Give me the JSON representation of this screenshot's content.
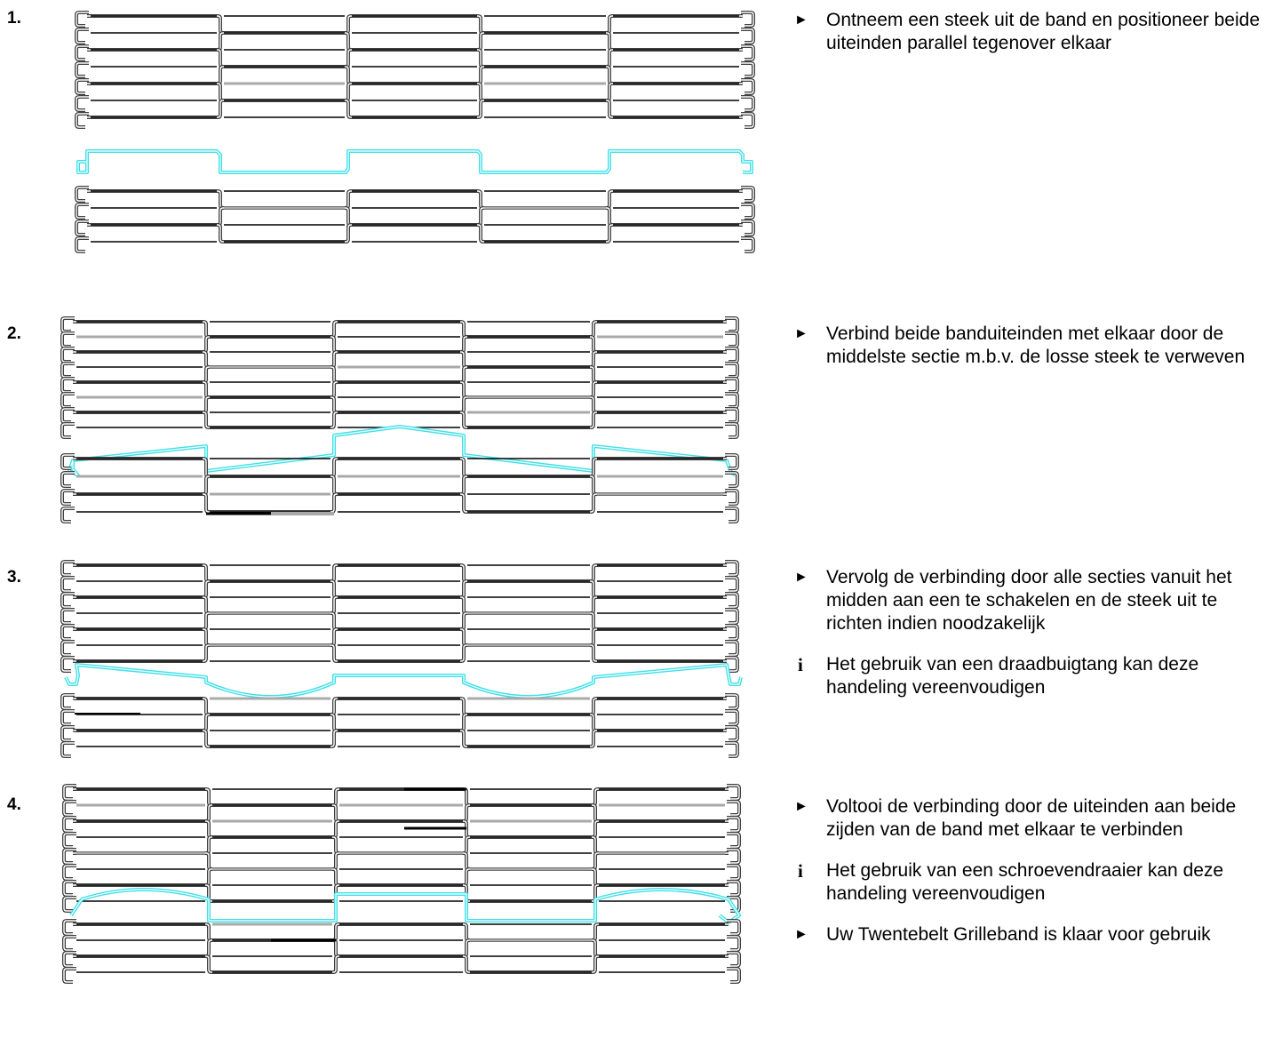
{
  "steps": [
    {
      "number": "1.",
      "items": [
        {
          "type": "arrow",
          "text": "Ontneem een steek uit de band en positioneer beide uiteinden parallel tegenover elkaar"
        }
      ]
    },
    {
      "number": "2.",
      "items": [
        {
          "type": "arrow",
          "text": "Verbind beide banduiteinden met elkaar door de middelste sectie m.b.v. de losse steek te verweven"
        }
      ]
    },
    {
      "number": "3.",
      "items": [
        {
          "type": "arrow",
          "text": "Vervolg de verbinding door alle secties vanuit het midden aan een te schakelen en de steek uit te richten indien noodzakelijk"
        },
        {
          "type": "info",
          "text": "Het gebruik van een draadbuigtang kan deze handeling vereenvoudigen"
        }
      ]
    },
    {
      "number": "4.",
      "items": [
        {
          "type": "arrow",
          "text": "Voltooi de verbinding door de uiteinden aan beide zijden van de band met elkaar te verbinden"
        },
        {
          "type": "info",
          "text": "Het gebruik van een schroevendraaier kan deze handeling vereenvoudigen"
        },
        {
          "type": "arrow",
          "text": "Uw Twentebelt Grilleband is klaar voor gebruik"
        }
      ]
    }
  ],
  "symbols": {
    "arrow": "►",
    "info": "i"
  },
  "colors": {
    "wire": "#404040",
    "wire_inner": "#ffffff",
    "rod": "#000000",
    "rod_gray": "#a9a9a9",
    "splice": "#3fe0e8"
  }
}
